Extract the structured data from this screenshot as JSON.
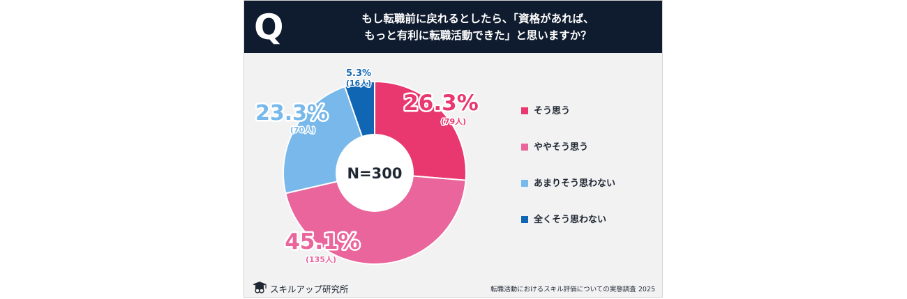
{
  "header": {
    "q_label": "Q",
    "question_line1": "もし転職前に戻れるとしたら、「資格があれば、",
    "question_line2": "もっと有利に転職活動できた」と思いますか？"
  },
  "chart_data": {
    "type": "pie",
    "center_label": "N=300",
    "series": [
      {
        "name": "そう思う",
        "pct_label": "26.3%",
        "count_label": "(79人)",
        "percent": 26.3,
        "count": 79,
        "color": "#e8386f"
      },
      {
        "name": "ややそう思う",
        "pct_label": "45.1%",
        "count_label": "(135人)",
        "percent": 45.1,
        "count": 135,
        "color": "#e9659c"
      },
      {
        "name": "あまりそう思わない",
        "pct_label": "23.3%",
        "count_label": "(70人)",
        "percent": 23.3,
        "count": 70,
        "color": "#78b8ea"
      },
      {
        "name": "全くそう思わない",
        "pct_label": "5.3%",
        "count_label": "(16人)",
        "percent": 5.3,
        "count": 16,
        "color": "#1166b3"
      }
    ],
    "legend_position": "right"
  },
  "footer": {
    "logo_text": "スキルアップ研究所",
    "source_text": "転職活動におけるスキル評価についての実態調査 2025"
  }
}
